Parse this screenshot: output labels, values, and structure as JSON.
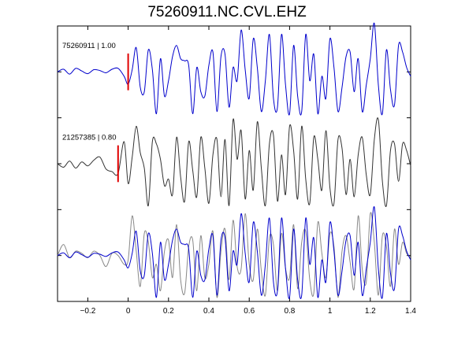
{
  "chart_data": {
    "type": "line",
    "title": "75260911.NC.CVL.EHZ",
    "xlabel": "",
    "ylabel": "",
    "xlim": [
      -0.35,
      1.4
    ],
    "xticks": [
      -0.2,
      0,
      0.2,
      0.4,
      0.6,
      0.8,
      1,
      1.2,
      1.4
    ],
    "xtick_labels": [
      "−0.2",
      "0",
      "0.2",
      "0.4",
      "0.6",
      "0.8",
      "1",
      "1.2",
      "1.4"
    ],
    "grid": false,
    "legend": "none",
    "colors": {
      "master": "#0000cc",
      "correlated": "#333333",
      "overlay": "#888888",
      "pick": "#e00000"
    },
    "panels": [
      {
        "label": "75260911 | 1.00",
        "pick_time": 0.0,
        "series": [
          "master"
        ]
      },
      {
        "label": "21257385 | 0.80",
        "pick_time": -0.05,
        "series": [
          "correlated"
        ]
      },
      {
        "label": "",
        "pick_time": null,
        "series": [
          "correlated_aligned",
          "master"
        ]
      }
    ],
    "series": [
      {
        "key": "master",
        "x": [
          -0.35,
          -0.32,
          -0.29,
          -0.26,
          -0.23,
          -0.2,
          -0.17,
          -0.14,
          -0.11,
          -0.08,
          -0.05,
          -0.02,
          0.0,
          0.02,
          0.04,
          0.06,
          0.08,
          0.1,
          0.12,
          0.14,
          0.16,
          0.18,
          0.2,
          0.22,
          0.24,
          0.26,
          0.28,
          0.3,
          0.32,
          0.34,
          0.36,
          0.38,
          0.4,
          0.42,
          0.44,
          0.46,
          0.48,
          0.5,
          0.52,
          0.54,
          0.56,
          0.58,
          0.6,
          0.62,
          0.64,
          0.66,
          0.68,
          0.7,
          0.72,
          0.74,
          0.76,
          0.78,
          0.8,
          0.82,
          0.84,
          0.86,
          0.88,
          0.9,
          0.92,
          0.94,
          0.96,
          0.98,
          1.0,
          1.02,
          1.04,
          1.06,
          1.08,
          1.1,
          1.12,
          1.14,
          1.16,
          1.18,
          1.2,
          1.22,
          1.24,
          1.26,
          1.28,
          1.3,
          1.32,
          1.34,
          1.36,
          1.38,
          1.4
        ],
        "y": [
          0.0,
          0.06,
          -0.05,
          0.08,
          0.02,
          -0.04,
          0.05,
          0.03,
          -0.02,
          0.06,
          0.08,
          -0.1,
          -0.28,
          0.05,
          0.55,
          -0.35,
          -0.45,
          0.5,
          0.05,
          -0.95,
          0.3,
          -0.55,
          -0.2,
          0.35,
          0.6,
          0.3,
          0.25,
          0.15,
          -0.95,
          0.1,
          -0.45,
          -0.55,
          0.15,
          0.45,
          -0.9,
          0.35,
          0.4,
          -0.8,
          0.1,
          -0.2,
          0.95,
          0.05,
          -0.6,
          0.75,
          0.1,
          -0.9,
          -0.2,
          0.85,
          -0.6,
          -0.8,
          0.85,
          -0.3,
          -0.95,
          0.6,
          -0.55,
          -0.9,
          0.85,
          -0.2,
          0.4,
          -0.95,
          -0.1,
          -0.6,
          0.75,
          0.1,
          -0.9,
          -0.35,
          0.35,
          0.45,
          -0.45,
          0.3,
          -0.9,
          -0.3,
          0.3,
          1.1,
          -0.3,
          -0.95,
          0.5,
          -0.4,
          -0.75,
          0.6,
          0.45,
          0.1,
          -0.1
        ]
      },
      {
        "key": "correlated",
        "x": [
          -0.35,
          -0.32,
          -0.29,
          -0.26,
          -0.23,
          -0.2,
          -0.17,
          -0.14,
          -0.11,
          -0.08,
          -0.05,
          -0.02,
          0.0,
          0.02,
          0.04,
          0.06,
          0.08,
          0.1,
          0.12,
          0.14,
          0.16,
          0.18,
          0.2,
          0.22,
          0.24,
          0.26,
          0.28,
          0.3,
          0.32,
          0.34,
          0.36,
          0.38,
          0.4,
          0.42,
          0.44,
          0.46,
          0.48,
          0.5,
          0.52,
          0.54,
          0.56,
          0.58,
          0.6,
          0.62,
          0.64,
          0.66,
          0.68,
          0.7,
          0.72,
          0.74,
          0.76,
          0.78,
          0.8,
          0.82,
          0.84,
          0.86,
          0.88,
          0.9,
          0.92,
          0.94,
          0.96,
          0.98,
          1.0,
          1.02,
          1.04,
          1.06,
          1.08,
          1.1,
          1.12,
          1.14,
          1.16,
          1.18,
          1.2,
          1.22,
          1.24,
          1.26,
          1.28,
          1.3,
          1.32,
          1.34,
          1.36,
          1.38,
          1.4
        ],
        "y": [
          0.0,
          -0.08,
          0.06,
          -0.1,
          0.04,
          -0.05,
          0.08,
          0.15,
          -0.12,
          -0.18,
          -0.22,
          0.5,
          -0.45,
          0.15,
          0.85,
          0.25,
          -0.1,
          -0.95,
          0.5,
          0.45,
          0.1,
          -0.5,
          -0.35,
          -0.7,
          0.6,
          -0.3,
          -0.85,
          0.5,
          -0.15,
          -0.75,
          0.6,
          -0.1,
          -0.9,
          0.2,
          0.55,
          -0.75,
          0.55,
          -0.95,
          1.0,
          0.1,
          0.75,
          -0.8,
          0.3,
          -0.6,
          0.95,
          -0.1,
          -0.95,
          0.45,
          0.65,
          -0.85,
          0.2,
          -0.7,
          0.85,
          0.3,
          -0.8,
          0.85,
          -0.35,
          -0.9,
          0.6,
          0.1,
          -0.6,
          0.75,
          -0.55,
          -0.9,
          0.55,
          0.35,
          -0.7,
          0.1,
          -0.75,
          0.2,
          0.6,
          -0.25,
          -0.7,
          0.55,
          1.0,
          -0.4,
          -0.95,
          0.3,
          0.45,
          -0.4,
          0.45,
          0.3,
          -0.05
        ]
      },
      {
        "key": "correlated_aligned",
        "x": [
          -0.35,
          -0.32,
          -0.29,
          -0.26,
          -0.23,
          -0.2,
          -0.17,
          -0.14,
          -0.11,
          -0.08,
          -0.05,
          -0.02,
          0.0,
          0.02,
          0.04,
          0.06,
          0.08,
          0.1,
          0.12,
          0.14,
          0.16,
          0.18,
          0.2,
          0.22,
          0.24,
          0.26,
          0.28,
          0.3,
          0.32,
          0.34,
          0.36,
          0.38,
          0.4,
          0.42,
          0.44,
          0.46,
          0.48,
          0.5,
          0.52,
          0.54,
          0.56,
          0.58,
          0.6,
          0.62,
          0.64,
          0.66,
          0.68,
          0.7,
          0.72,
          0.74,
          0.76,
          0.78,
          0.8,
          0.82,
          0.84,
          0.86,
          0.88,
          0.9,
          0.92,
          0.94,
          0.96,
          0.98,
          1.0,
          1.02,
          1.04,
          1.06,
          1.08,
          1.1,
          1.12,
          1.14,
          1.16,
          1.18,
          1.2,
          1.22,
          1.24,
          1.26,
          1.28,
          1.3,
          1.32,
          1.34,
          1.36,
          1.38,
          1.4
        ],
        "y": [
          0.0,
          0.25,
          -0.05,
          0.1,
          0.05,
          -0.05,
          0.1,
          0.0,
          -0.25,
          0.05,
          0.0,
          -0.2,
          -0.1,
          0.9,
          0.1,
          -0.7,
          0.5,
          0.3,
          -0.5,
          -0.2,
          -0.8,
          0.1,
          0.35,
          -0.5,
          0.7,
          -0.55,
          -0.85,
          0.2,
          0.35,
          -0.8,
          0.45,
          -0.5,
          -0.2,
          0.55,
          -0.95,
          0.1,
          0.6,
          -0.55,
          0.8,
          -0.25,
          -0.3,
          0.95,
          -0.2,
          -0.55,
          0.6,
          -0.35,
          -0.9,
          0.4,
          0.25,
          -0.8,
          0.5,
          -0.3,
          -0.5,
          0.7,
          -0.75,
          0.3,
          0.55,
          -0.55,
          -0.85,
          0.75,
          0.05,
          -0.5,
          0.5,
          0.2,
          -0.95,
          0.1,
          0.45,
          -0.15,
          -0.75,
          0.9,
          -0.3,
          -0.6,
          0.95,
          0.3,
          -0.9,
          0.45,
          0.2,
          -0.7,
          0.6,
          -0.2,
          0.3,
          0.05,
          -0.05
        ]
      }
    ]
  }
}
